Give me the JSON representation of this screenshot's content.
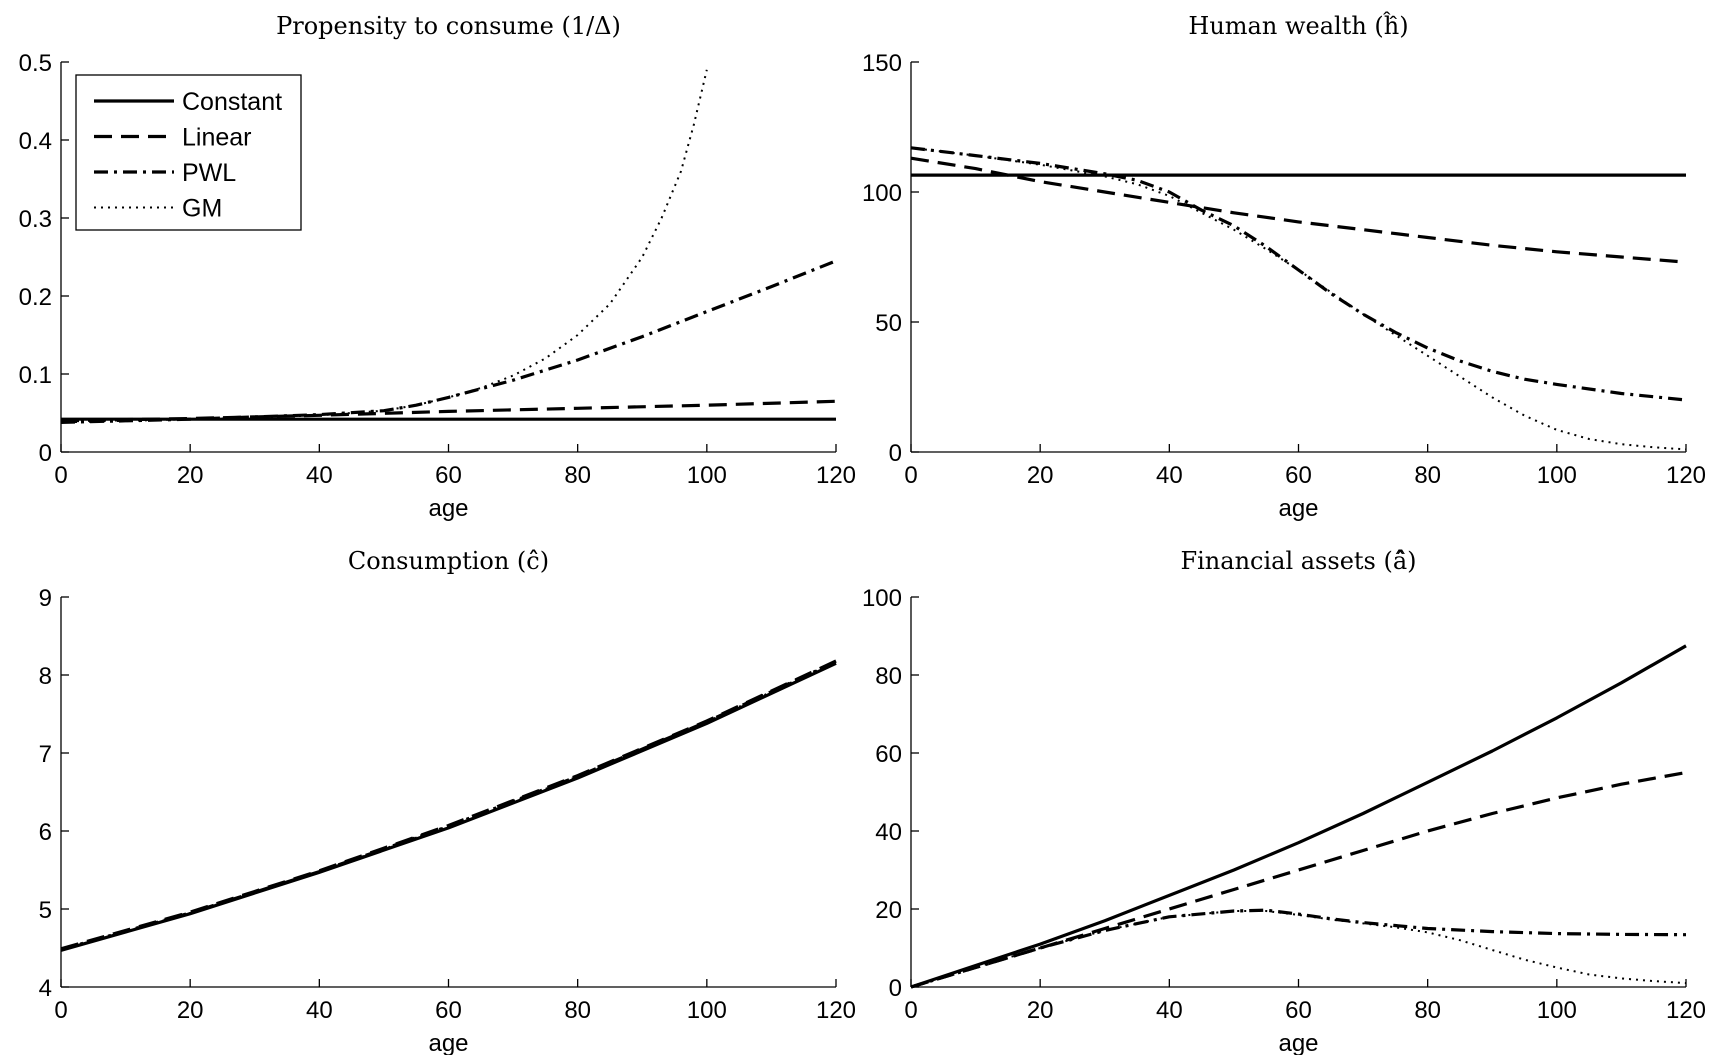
{
  "chart_data": [
    {
      "type": "line",
      "title": "Propensity to consume (1/Δ)",
      "xlabel": "age",
      "ylabel": "",
      "xlim": [
        0,
        120
      ],
      "ylim": [
        0,
        0.5
      ],
      "xticks": [
        0,
        20,
        40,
        60,
        80,
        100,
        120
      ],
      "yticks": [
        0,
        0.1,
        0.2,
        0.3,
        0.4,
        0.5
      ],
      "xtick_labels": [
        "0",
        "20",
        "40",
        "60",
        "80",
        "100",
        "120"
      ],
      "ytick_labels": [
        "0",
        "0.1",
        "0.2",
        "0.3",
        "0.4",
        "0.5"
      ],
      "legend": "top-left",
      "series": [
        {
          "name": "Constant",
          "style": "solid",
          "x": [
            0,
            120
          ],
          "values": [
            0.042,
            0.042
          ]
        },
        {
          "name": "Linear",
          "style": "dashed",
          "x": [
            0,
            20,
            40,
            60,
            80,
            100,
            120
          ],
          "values": [
            0.04,
            0.043,
            0.047,
            0.052,
            0.056,
            0.06,
            0.065
          ]
        },
        {
          "name": "PWL",
          "style": "dashdot",
          "x": [
            0,
            10,
            20,
            30,
            40,
            50,
            55,
            60,
            70,
            80,
            90,
            100,
            110,
            120
          ],
          "values": [
            0.038,
            0.04,
            0.042,
            0.045,
            0.048,
            0.053,
            0.06,
            0.07,
            0.092,
            0.118,
            0.148,
            0.18,
            0.212,
            0.245
          ]
        },
        {
          "name": "GM",
          "style": "dotted",
          "x": [
            0,
            10,
            20,
            30,
            40,
            50,
            55,
            60,
            65,
            70,
            75,
            80,
            85,
            90,
            93,
            96,
            98,
            100
          ],
          "values": [
            0.038,
            0.04,
            0.042,
            0.044,
            0.047,
            0.053,
            0.06,
            0.07,
            0.082,
            0.098,
            0.12,
            0.15,
            0.19,
            0.25,
            0.3,
            0.36,
            0.42,
            0.49
          ]
        }
      ]
    },
    {
      "type": "line",
      "title": "Human wealth (ĥ̂)",
      "xlabel": "age",
      "ylabel": "",
      "xlim": [
        0,
        120
      ],
      "ylim": [
        0,
        150
      ],
      "xticks": [
        0,
        20,
        40,
        60,
        80,
        100,
        120
      ],
      "yticks": [
        0,
        50,
        100,
        150
      ],
      "xtick_labels": [
        "0",
        "20",
        "40",
        "60",
        "80",
        "100",
        "120"
      ],
      "ytick_labels": [
        "0",
        "50",
        "100",
        "150"
      ],
      "series": [
        {
          "name": "Constant",
          "style": "solid",
          "x": [
            0,
            120
          ],
          "values": [
            106.5,
            106.5
          ]
        },
        {
          "name": "Linear",
          "style": "dashed",
          "x": [
            0,
            10,
            20,
            30,
            40,
            50,
            60,
            70,
            80,
            90,
            100,
            110,
            120
          ],
          "values": [
            113,
            109,
            104,
            100,
            96,
            92,
            88.5,
            85.5,
            82.5,
            79.5,
            77,
            75,
            73
          ]
        },
        {
          "name": "PWL",
          "style": "dashdot",
          "x": [
            0,
            10,
            20,
            30,
            35,
            40,
            45,
            50,
            55,
            60,
            65,
            70,
            75,
            80,
            85,
            90,
            95,
            100,
            110,
            120
          ],
          "values": [
            117,
            114,
            111,
            107,
            104.5,
            100,
            93,
            87,
            79,
            70,
            61,
            53,
            46,
            40,
            35,
            31,
            28,
            26,
            22.5,
            20
          ]
        },
        {
          "name": "GM",
          "style": "dotted",
          "x": [
            0,
            10,
            20,
            30,
            35,
            40,
            45,
            50,
            55,
            60,
            65,
            70,
            75,
            80,
            85,
            90,
            95,
            100,
            105,
            110,
            115,
            120
          ],
          "values": [
            117,
            114,
            110.5,
            106,
            103,
            98.5,
            92,
            85.5,
            78,
            70,
            61.5,
            53,
            45,
            37,
            29,
            21,
            14,
            8.5,
            5,
            3,
            1.8,
            1
          ]
        }
      ]
    },
    {
      "type": "line",
      "title": "Consumption (ĉ̂)",
      "xlabel": "age",
      "ylabel": "",
      "xlim": [
        0,
        120
      ],
      "ylim": [
        4,
        9
      ],
      "xticks": [
        0,
        20,
        40,
        60,
        80,
        100,
        120
      ],
      "yticks": [
        4,
        5,
        6,
        7,
        8,
        9
      ],
      "xtick_labels": [
        "0",
        "20",
        "40",
        "60",
        "80",
        "100",
        "120"
      ],
      "ytick_labels": [
        "4",
        "5",
        "6",
        "7",
        "8",
        "9"
      ],
      "series": [
        {
          "name": "Constant",
          "style": "solid",
          "x": [
            0,
            20,
            40,
            60,
            80,
            100,
            120
          ],
          "values": [
            4.47,
            4.94,
            5.47,
            6.04,
            6.68,
            7.38,
            8.15
          ]
        },
        {
          "name": "Linear",
          "style": "dashed",
          "x": [
            0,
            20,
            40,
            60,
            80,
            100,
            120
          ],
          "values": [
            4.49,
            4.96,
            5.49,
            6.07,
            6.71,
            7.41,
            8.18
          ]
        },
        {
          "name": "PWL",
          "style": "dashdot",
          "x": [
            0,
            20,
            40,
            60,
            80,
            100,
            120
          ],
          "values": [
            4.48,
            4.95,
            5.48,
            6.06,
            6.7,
            7.4,
            8.17
          ]
        },
        {
          "name": "GM",
          "style": "dotted",
          "x": [
            0,
            20,
            40,
            60,
            80,
            100,
            120
          ],
          "values": [
            4.48,
            4.95,
            5.48,
            6.06,
            6.7,
            7.4,
            8.17
          ]
        }
      ]
    },
    {
      "type": "line",
      "title": "Financial assets (â̂)",
      "xlabel": "age",
      "ylabel": "",
      "xlim": [
        0,
        120
      ],
      "ylim": [
        0,
        100
      ],
      "xticks": [
        0,
        20,
        40,
        60,
        80,
        100,
        120
      ],
      "yticks": [
        0,
        20,
        40,
        60,
        80,
        100
      ],
      "xtick_labels": [
        "0",
        "20",
        "40",
        "60",
        "80",
        "100",
        "120"
      ],
      "ytick_labels": [
        "0",
        "20",
        "40",
        "60",
        "80",
        "100"
      ],
      "series": [
        {
          "name": "Constant",
          "style": "solid",
          "x": [
            0,
            10,
            20,
            30,
            40,
            50,
            60,
            70,
            80,
            90,
            100,
            110,
            120
          ],
          "values": [
            0,
            5.5,
            11,
            17,
            23.5,
            30,
            37,
            44.5,
            52.5,
            60.5,
            69,
            78,
            87.5
          ]
        },
        {
          "name": "Linear",
          "style": "dashed",
          "x": [
            0,
            10,
            20,
            30,
            40,
            50,
            60,
            70,
            80,
            90,
            100,
            110,
            120
          ],
          "values": [
            0,
            5,
            10,
            15,
            20,
            25,
            30,
            35,
            40,
            44.5,
            48.5,
            52,
            55
          ]
        },
        {
          "name": "PWL",
          "style": "dashdot",
          "x": [
            0,
            10,
            20,
            30,
            40,
            50,
            55,
            60,
            65,
            70,
            80,
            90,
            100,
            110,
            120
          ],
          "values": [
            0,
            5,
            10,
            14.5,
            18,
            19.5,
            19.7,
            18.7,
            17.5,
            16.5,
            15,
            14.2,
            13.7,
            13.5,
            13.4
          ]
        },
        {
          "name": "GM",
          "style": "dotted",
          "x": [
            0,
            10,
            20,
            30,
            40,
            50,
            55,
            60,
            65,
            70,
            75,
            80,
            85,
            90,
            95,
            100,
            105,
            110,
            115,
            120
          ],
          "values": [
            0,
            5,
            10,
            14.5,
            18,
            19.5,
            19.5,
            18.5,
            17.3,
            16.3,
            15.3,
            14,
            12,
            9.5,
            7,
            5,
            3.2,
            2.2,
            1.5,
            1
          ]
        }
      ]
    }
  ]
}
